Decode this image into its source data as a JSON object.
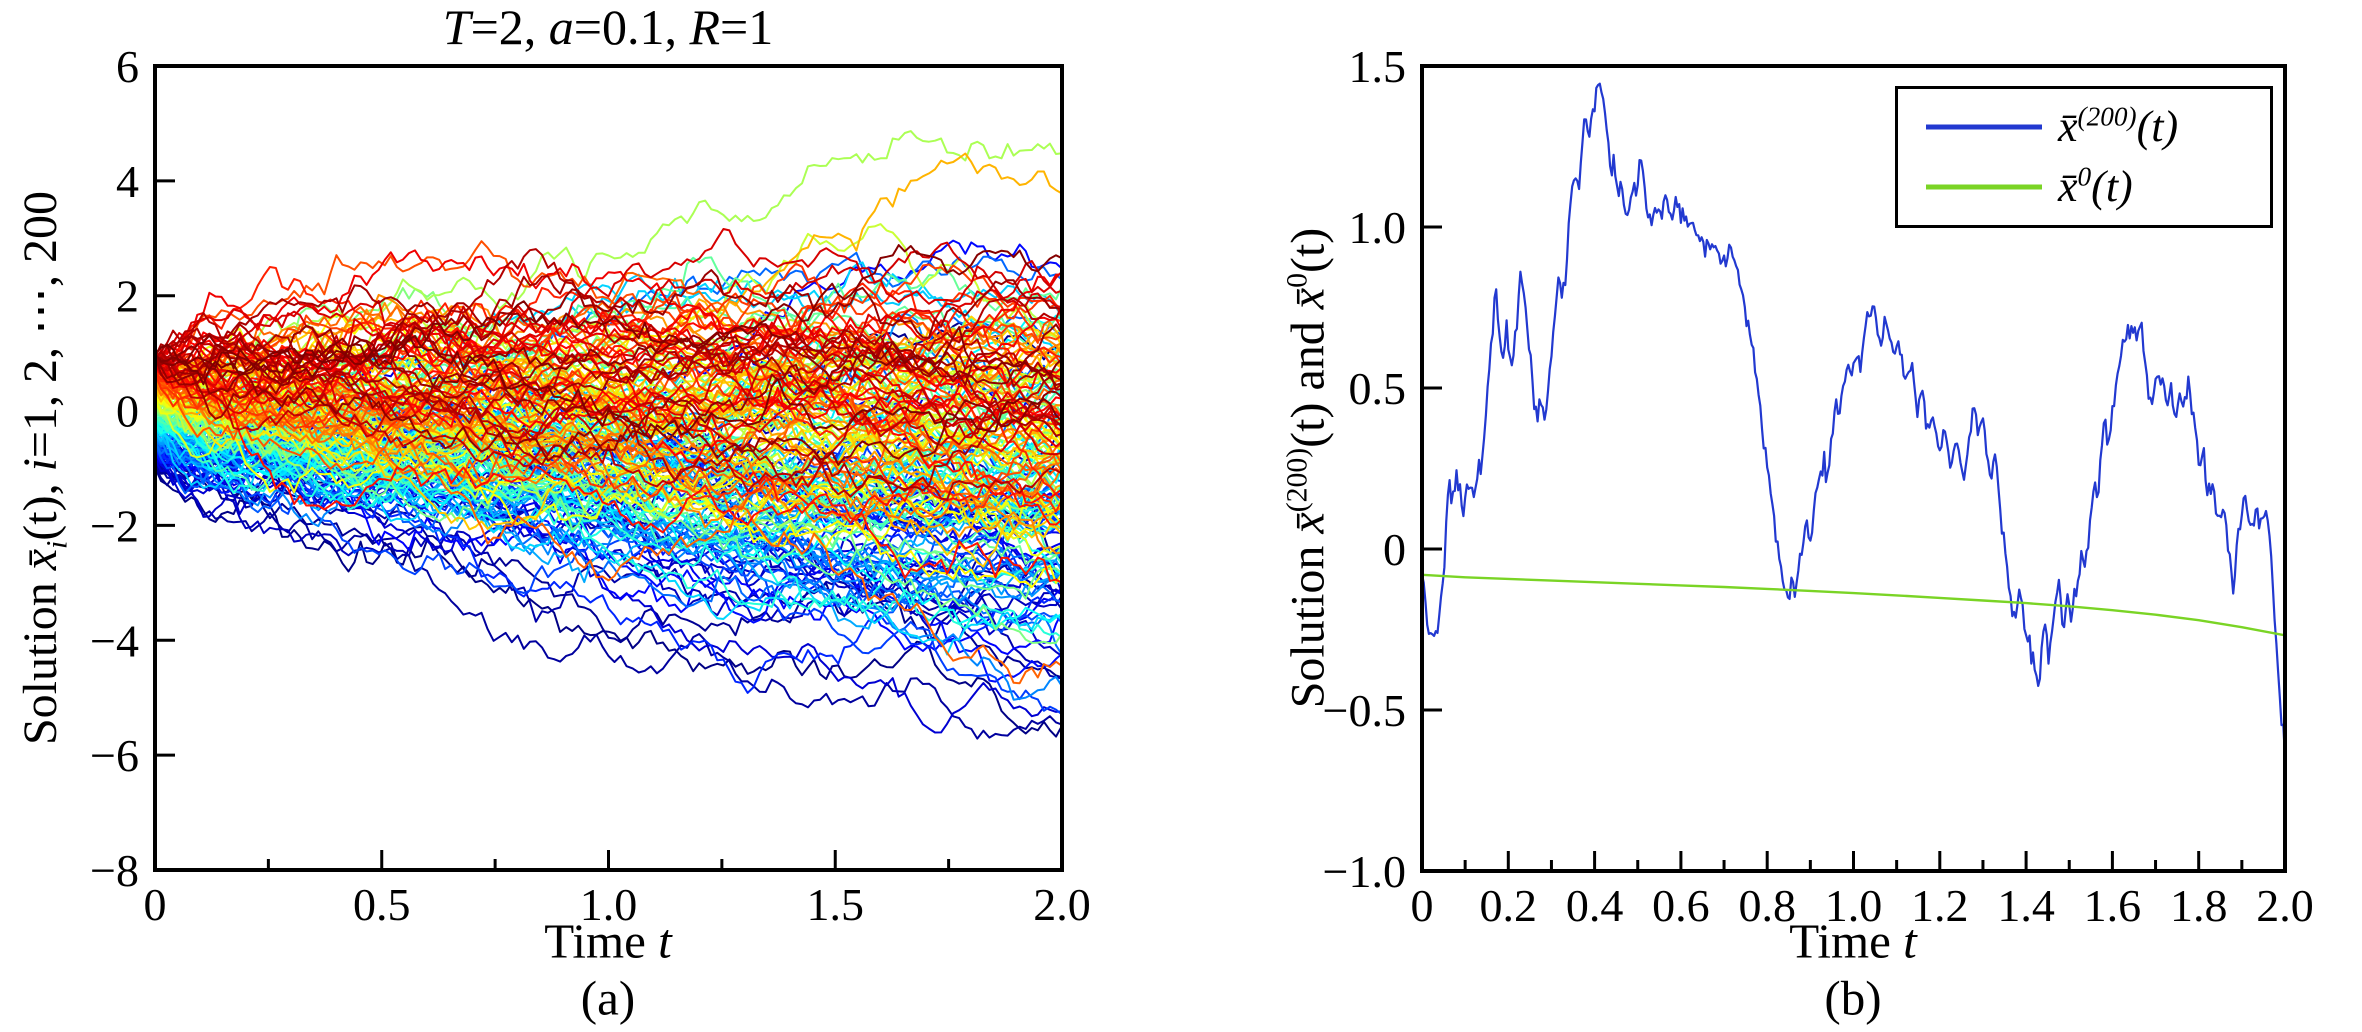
{
  "figure": {
    "background": "#ffffff",
    "text_color": "#000000",
    "spine_color": "#000000"
  },
  "chart_data": [
    {
      "type": "line",
      "title": "T=2, a=0.1, R=1",
      "title_runs": [
        {
          "text": "T"
        },
        {
          "text": "=2, "
        },
        {
          "text": "a"
        },
        {
          "text": "=0.1, "
        },
        {
          "text": "R"
        },
        {
          "text": "=1"
        }
      ],
      "xlabel": "Time t",
      "xlabel_runs": {
        "p1": "Time ",
        "p2": "t"
      },
      "ylabel": "Solution x̄_i(t), i=1, 2, ⋯, 200",
      "ylabel_runs": {
        "p1": "Solution ",
        "xbar": "x̄",
        "sub": "i",
        "p2": "(t), ",
        "i": "i",
        "p3": "=1, 2, ⋯, 200"
      },
      "caption": "(a)",
      "xlim": [
        0,
        2
      ],
      "ylim": [
        -8,
        6
      ],
      "xticks": {
        "values": [
          0,
          0.5,
          1.0,
          1.5,
          2.0
        ],
        "labels": [
          "0",
          "0.5",
          "1.0",
          "1.5",
          "2.0"
        ],
        "minor": [
          0.25,
          0.75,
          1.25,
          1.75
        ]
      },
      "yticks": {
        "values": [
          6,
          4,
          2,
          0,
          -2,
          -4,
          -6,
          -8
        ],
        "labels": [
          "6",
          "4",
          "2",
          "0",
          "−2",
          "−4",
          "−6",
          "−8"
        ],
        "minor": []
      },
      "n_series": 200,
      "description": "200 stochastic sample trajectories starting uniformly in [-1,1] at t=0, colored by initial value with a jet colormap (blue = lowest, dark red = highest); the bundle fans out to roughly [-6.7, 4.0] by t=2 with a slight downward drift.",
      "series_model": {
        "initial_value_range": [
          -1,
          1
        ],
        "colormap": "jet",
        "steps": 150,
        "a_coupling": 0.1,
        "drift_base": -0.42,
        "drift_color_span": 0.5,
        "sigma": 1.05,
        "seed": 20240613,
        "linewidth": 2
      }
    },
    {
      "type": "line",
      "title": "",
      "xlabel": "Time t",
      "xlabel_runs": {
        "p1": "Time ",
        "p2": "t"
      },
      "ylabel": "Solution x̄^(200)(t) and x̄^0(t)",
      "ylabel_runs": {
        "p1": "Solution ",
        "xbar1": "x̄",
        "sup1": "(200)",
        "p2": "(t) and ",
        "xbar2": "x̄",
        "sup2": "0",
        "p3": "(t)"
      },
      "caption": "(b)",
      "xlim": [
        0,
        2
      ],
      "ylim": [
        -1.0,
        1.5
      ],
      "xticks": {
        "values": [
          0,
          0.2,
          0.4,
          0.6,
          0.8,
          1.0,
          1.2,
          1.4,
          1.6,
          1.8,
          2.0
        ],
        "labels": [
          "0",
          "0.2",
          "0.4",
          "0.6",
          "0.8",
          "1.0",
          "1.2",
          "1.4",
          "1.6",
          "1.8",
          "2.0"
        ],
        "minor": [
          0.1,
          0.3,
          0.5,
          0.7,
          0.9,
          1.1,
          1.3,
          1.5,
          1.7,
          1.9
        ]
      },
      "yticks": {
        "values": [
          1.5,
          1.0,
          0.5,
          0,
          -0.5,
          -1.0
        ],
        "labels": [
          "1.5",
          "1.0",
          "0.5",
          "0",
          "−0.5",
          "−1.0"
        ],
        "minor": []
      },
      "legend": {
        "position": "upper right",
        "entries": [
          {
            "label": "x̄^(200)(t)",
            "label_parts": {
              "base": "x̄",
              "sup": "(200)",
              "arg": "(t)"
            },
            "color": "#2239d0"
          },
          {
            "label": "x̄^0(t)",
            "label_parts": {
              "base": "x̄",
              "sup": "0",
              "arg": "(t)"
            },
            "color": "#7ad425"
          }
        ]
      },
      "series": [
        {
          "name": "xbar_200",
          "color": "#2239d0",
          "linewidth": 2.2,
          "jitter": {
            "amp": 0.016,
            "dt": 0.004,
            "seed": 771
          },
          "points": [
            [
              0,
              -0.08
            ],
            [
              0.008,
              -0.16
            ],
            [
              0.015,
              -0.28
            ],
            [
              0.022,
              -0.24
            ],
            [
              0.03,
              -0.31
            ],
            [
              0.04,
              -0.22
            ],
            [
              0.048,
              -0.1
            ],
            [
              0.055,
              0.05
            ],
            [
              0.062,
              0.22
            ],
            [
              0.072,
              0.18
            ],
            [
              0.08,
              0.24
            ],
            [
              0.09,
              0.15
            ],
            [
              0.1,
              0.13
            ],
            [
              0.108,
              0.2
            ],
            [
              0.118,
              0.16
            ],
            [
              0.128,
              0.22
            ],
            [
              0.14,
              0.28
            ],
            [
              0.15,
              0.45
            ],
            [
              0.158,
              0.6
            ],
            [
              0.165,
              0.72
            ],
            [
              0.172,
              0.8
            ],
            [
              0.18,
              0.66
            ],
            [
              0.188,
              0.6
            ],
            [
              0.196,
              0.68
            ],
            [
              0.205,
              0.56
            ],
            [
              0.212,
              0.62
            ],
            [
              0.22,
              0.74
            ],
            [
              0.228,
              0.86
            ],
            [
              0.236,
              0.78
            ],
            [
              0.244,
              0.7
            ],
            [
              0.252,
              0.58
            ],
            [
              0.26,
              0.48
            ],
            [
              0.268,
              0.42
            ],
            [
              0.276,
              0.47
            ],
            [
              0.284,
              0.41
            ],
            [
              0.292,
              0.5
            ],
            [
              0.3,
              0.6
            ],
            [
              0.308,
              0.72
            ],
            [
              0.316,
              0.85
            ],
            [
              0.324,
              0.78
            ],
            [
              0.332,
              0.85
            ],
            [
              0.34,
              1.0
            ],
            [
              0.348,
              1.1
            ],
            [
              0.355,
              1.19
            ],
            [
              0.363,
              1.11
            ],
            [
              0.372,
              1.26
            ],
            [
              0.38,
              1.34
            ],
            [
              0.388,
              1.28
            ],
            [
              0.396,
              1.38
            ],
            [
              0.406,
              1.43
            ],
            [
              0.414,
              1.47
            ],
            [
              0.422,
              1.36
            ],
            [
              0.43,
              1.28
            ],
            [
              0.438,
              1.14
            ],
            [
              0.446,
              1.22
            ],
            [
              0.455,
              1.08
            ],
            [
              0.462,
              1.15
            ],
            [
              0.47,
              1.03
            ],
            [
              0.48,
              1.06
            ],
            [
              0.495,
              1.12
            ],
            [
              0.51,
              1.22
            ],
            [
              0.52,
              1.06
            ],
            [
              0.532,
              1.02
            ],
            [
              0.545,
              1.08
            ],
            [
              0.555,
              1.04
            ],
            [
              0.565,
              1.1
            ],
            [
              0.578,
              1.03
            ],
            [
              0.59,
              1.09
            ],
            [
              0.6,
              1.04
            ],
            [
              0.615,
              1.02
            ],
            [
              0.63,
              1.0
            ],
            [
              0.645,
              0.96
            ],
            [
              0.66,
              0.94
            ],
            [
              0.672,
              0.96
            ],
            [
              0.685,
              0.92
            ],
            [
              0.7,
              0.89
            ],
            [
              0.712,
              0.91
            ],
            [
              0.725,
              0.9
            ],
            [
              0.738,
              0.82
            ],
            [
              0.748,
              0.76
            ],
            [
              0.758,
              0.68
            ],
            [
              0.768,
              0.6
            ],
            [
              0.776,
              0.52
            ],
            [
              0.784,
              0.42
            ],
            [
              0.792,
              0.33
            ],
            [
              0.8,
              0.27
            ],
            [
              0.81,
              0.16
            ],
            [
              0.82,
              0.05
            ],
            [
              0.83,
              -0.05
            ],
            [
              0.84,
              -0.13
            ],
            [
              0.85,
              -0.16
            ],
            [
              0.858,
              -0.08
            ],
            [
              0.866,
              -0.14
            ],
            [
              0.875,
              -0.06
            ],
            [
              0.884,
              0.02
            ],
            [
              0.892,
              0.1
            ],
            [
              0.9,
              0.02
            ],
            [
              0.91,
              0.14
            ],
            [
              0.92,
              0.22
            ],
            [
              0.93,
              0.27
            ],
            [
              0.938,
              0.22
            ],
            [
              0.948,
              0.33
            ],
            [
              0.958,
              0.45
            ],
            [
              0.966,
              0.4
            ],
            [
              0.976,
              0.5
            ],
            [
              0.986,
              0.57
            ],
            [
              0.995,
              0.52
            ],
            [
              1.005,
              0.6
            ],
            [
              1.015,
              0.56
            ],
            [
              1.025,
              0.64
            ],
            [
              1.035,
              0.72
            ],
            [
              1.045,
              0.79
            ],
            [
              1.055,
              0.68
            ],
            [
              1.065,
              0.63
            ],
            [
              1.075,
              0.72
            ],
            [
              1.085,
              0.64
            ],
            [
              1.095,
              0.6
            ],
            [
              1.105,
              0.65
            ],
            [
              1.115,
              0.55
            ],
            [
              1.125,
              0.52
            ],
            [
              1.135,
              0.58
            ],
            [
              1.148,
              0.43
            ],
            [
              1.16,
              0.5
            ],
            [
              1.172,
              0.36
            ],
            [
              1.185,
              0.43
            ],
            [
              1.198,
              0.3
            ],
            [
              1.212,
              0.38
            ],
            [
              1.225,
              0.26
            ],
            [
              1.24,
              0.34
            ],
            [
              1.255,
              0.21
            ],
            [
              1.268,
              0.33
            ],
            [
              1.278,
              0.45
            ],
            [
              1.29,
              0.36
            ],
            [
              1.3,
              0.42
            ],
            [
              1.315,
              0.23
            ],
            [
              1.33,
              0.28
            ],
            [
              1.342,
              0.1
            ],
            [
              1.355,
              -0.05
            ],
            [
              1.365,
              -0.14
            ],
            [
              1.375,
              -0.23
            ],
            [
              1.385,
              -0.12
            ],
            [
              1.398,
              -0.25
            ],
            [
              1.41,
              -0.3
            ],
            [
              1.422,
              -0.38
            ],
            [
              1.43,
              -0.44
            ],
            [
              1.442,
              -0.2
            ],
            [
              1.452,
              -0.33
            ],
            [
              1.462,
              -0.22
            ],
            [
              1.47,
              -0.15
            ],
            [
              1.477,
              -0.08
            ],
            [
              1.486,
              -0.26
            ],
            [
              1.497,
              -0.16
            ],
            [
              1.507,
              -0.21
            ],
            [
              1.518,
              -0.1
            ],
            [
              1.528,
              -0.02
            ],
            [
              1.538,
              -0.07
            ],
            [
              1.548,
              0.08
            ],
            [
              1.558,
              0.2
            ],
            [
              1.566,
              0.14
            ],
            [
              1.575,
              0.33
            ],
            [
              1.582,
              0.45
            ],
            [
              1.59,
              0.32
            ],
            [
              1.6,
              0.44
            ],
            [
              1.612,
              0.54
            ],
            [
              1.622,
              0.61
            ],
            [
              1.635,
              0.67
            ],
            [
              1.65,
              0.7
            ],
            [
              1.658,
              0.66
            ],
            [
              1.666,
              0.69
            ],
            [
              1.678,
              0.56
            ],
            [
              1.69,
              0.43
            ],
            [
              1.7,
              0.51
            ],
            [
              1.712,
              0.55
            ],
            [
              1.724,
              0.45
            ],
            [
              1.735,
              0.5
            ],
            [
              1.746,
              0.39
            ],
            [
              1.756,
              0.48
            ],
            [
              1.766,
              0.41
            ],
            [
              1.776,
              0.54
            ],
            [
              1.786,
              0.42
            ],
            [
              1.795,
              0.34
            ],
            [
              1.805,
              0.23
            ],
            [
              1.812,
              0.3
            ],
            [
              1.82,
              0.16
            ],
            [
              1.832,
              0.21
            ],
            [
              1.845,
              0.09
            ],
            [
              1.855,
              0.15
            ],
            [
              1.868,
              0.03
            ],
            [
              1.88,
              -0.12
            ],
            [
              1.892,
              0.05
            ],
            [
              1.905,
              0.17
            ],
            [
              1.915,
              0.11
            ],
            [
              1.925,
              0.05
            ],
            [
              1.935,
              0.11
            ],
            [
              1.945,
              0.07
            ],
            [
              1.955,
              0.12
            ],
            [
              1.963,
              0.08
            ],
            [
              1.97,
              -0.08
            ],
            [
              1.978,
              -0.28
            ],
            [
              1.984,
              -0.4
            ],
            [
              1.99,
              -0.5
            ],
            [
              1.995,
              -0.55
            ],
            [
              2,
              -0.65
            ]
          ]
        },
        {
          "name": "xbar_0",
          "color": "#7ad425",
          "linewidth": 2.4,
          "points": [
            [
              0,
              -0.08
            ],
            [
              0.1,
              -0.088
            ],
            [
              0.2,
              -0.093
            ],
            [
              0.3,
              -0.098
            ],
            [
              0.4,
              -0.103
            ],
            [
              0.5,
              -0.108
            ],
            [
              0.6,
              -0.113
            ],
            [
              0.7,
              -0.118
            ],
            [
              0.8,
              -0.124
            ],
            [
              0.9,
              -0.13
            ],
            [
              1.0,
              -0.137
            ],
            [
              1.1,
              -0.144
            ],
            [
              1.2,
              -0.152
            ],
            [
              1.3,
              -0.16
            ],
            [
              1.4,
              -0.168
            ],
            [
              1.5,
              -0.178
            ],
            [
              1.6,
              -0.19
            ],
            [
              1.7,
              -0.204
            ],
            [
              1.8,
              -0.221
            ],
            [
              1.9,
              -0.243
            ],
            [
              2.0,
              -0.268
            ]
          ]
        }
      ]
    }
  ]
}
